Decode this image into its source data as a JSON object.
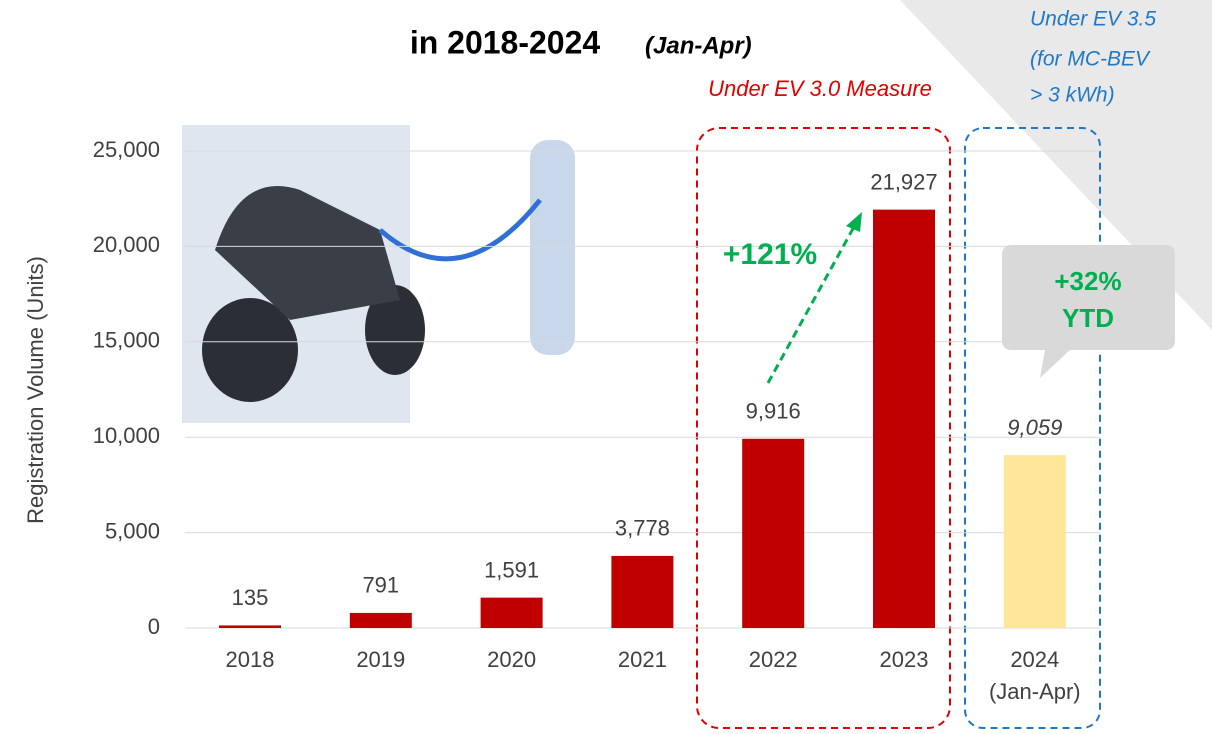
{
  "chart_data": {
    "type": "bar",
    "title": "in 2018-2024",
    "title_period": "(Jan-Apr)",
    "y_label": "Registration Volume (Units)",
    "categories": [
      "2018",
      "2019",
      "2020",
      "2021",
      "2022",
      "2023",
      "2024 (Jan-Apr)"
    ],
    "values": [
      135,
      791,
      1591,
      3778,
      9916,
      21927,
      9059
    ],
    "value_labels": [
      "135",
      "791",
      "1,591",
      "3,778",
      "9,916",
      "21,927",
      "9,059"
    ],
    "colors": [
      "#c00000",
      "#c00000",
      "#c00000",
      "#c00000",
      "#c00000",
      "#c00000",
      "#ffe699"
    ],
    "ylim": [
      0,
      25000
    ],
    "yticks": [
      {
        "value": 0,
        "label": "0"
      },
      {
        "value": 5000,
        "label": "5,000"
      },
      {
        "value": 10000,
        "label": "10,000"
      },
      {
        "value": 15000,
        "label": "15,000"
      },
      {
        "value": 20000,
        "label": "20,000"
      },
      {
        "value": 25000,
        "label": "25,000"
      }
    ],
    "grid": true,
    "annotations": {
      "ev30": "Under EV 3.0 Measure",
      "ev35": [
        "Under EV 3.5",
        "(for MC-BEV",
        "> 3 kWh)"
      ],
      "growth": "+121%",
      "ytd": [
        "+32%",
        "YTD"
      ]
    }
  }
}
